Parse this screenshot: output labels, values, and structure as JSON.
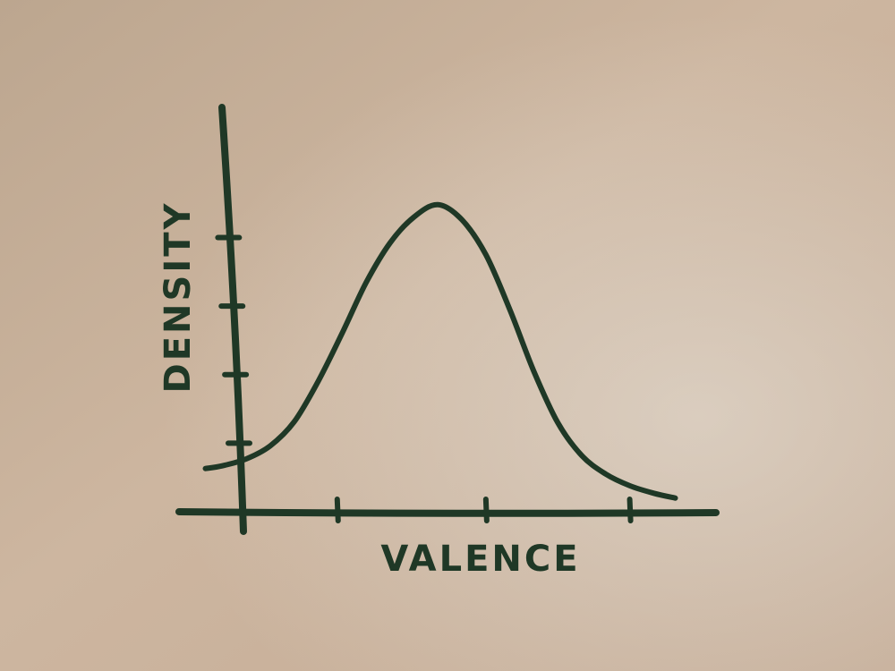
{
  "chart_data": {
    "type": "line",
    "title": "",
    "xlabel": "VALENCE",
    "ylabel": "DENSITY",
    "grid": false,
    "legend": "none",
    "x": [
      0.15,
      0.5,
      1.0,
      1.5,
      2.0,
      2.5,
      3.0,
      3.5,
      4.0,
      4.5,
      5.0,
      5.5,
      6.0,
      6.5,
      7.0,
      7.5,
      8.0,
      8.5,
      9.0,
      9.5,
      9.95
    ],
    "series": [
      {
        "values": [
          0.63,
          0.67,
          0.77,
          0.96,
          1.31,
          1.9,
          2.6,
          3.34,
          3.92,
          4.3,
          4.48,
          4.26,
          3.75,
          2.95,
          2.05,
          1.3,
          0.82,
          0.55,
          0.38,
          0.27,
          0.2
        ]
      }
    ],
    "xlim": [
      -0.4,
      10.8
    ],
    "ylim": [
      0,
      5.9
    ],
    "x_ticks": [
      2.9,
      6.0,
      9.0
    ],
    "y_ticks": [
      1.0,
      2.0,
      3.0,
      4.0
    ],
    "colors": {
      "ink": "#1f3826"
    }
  }
}
